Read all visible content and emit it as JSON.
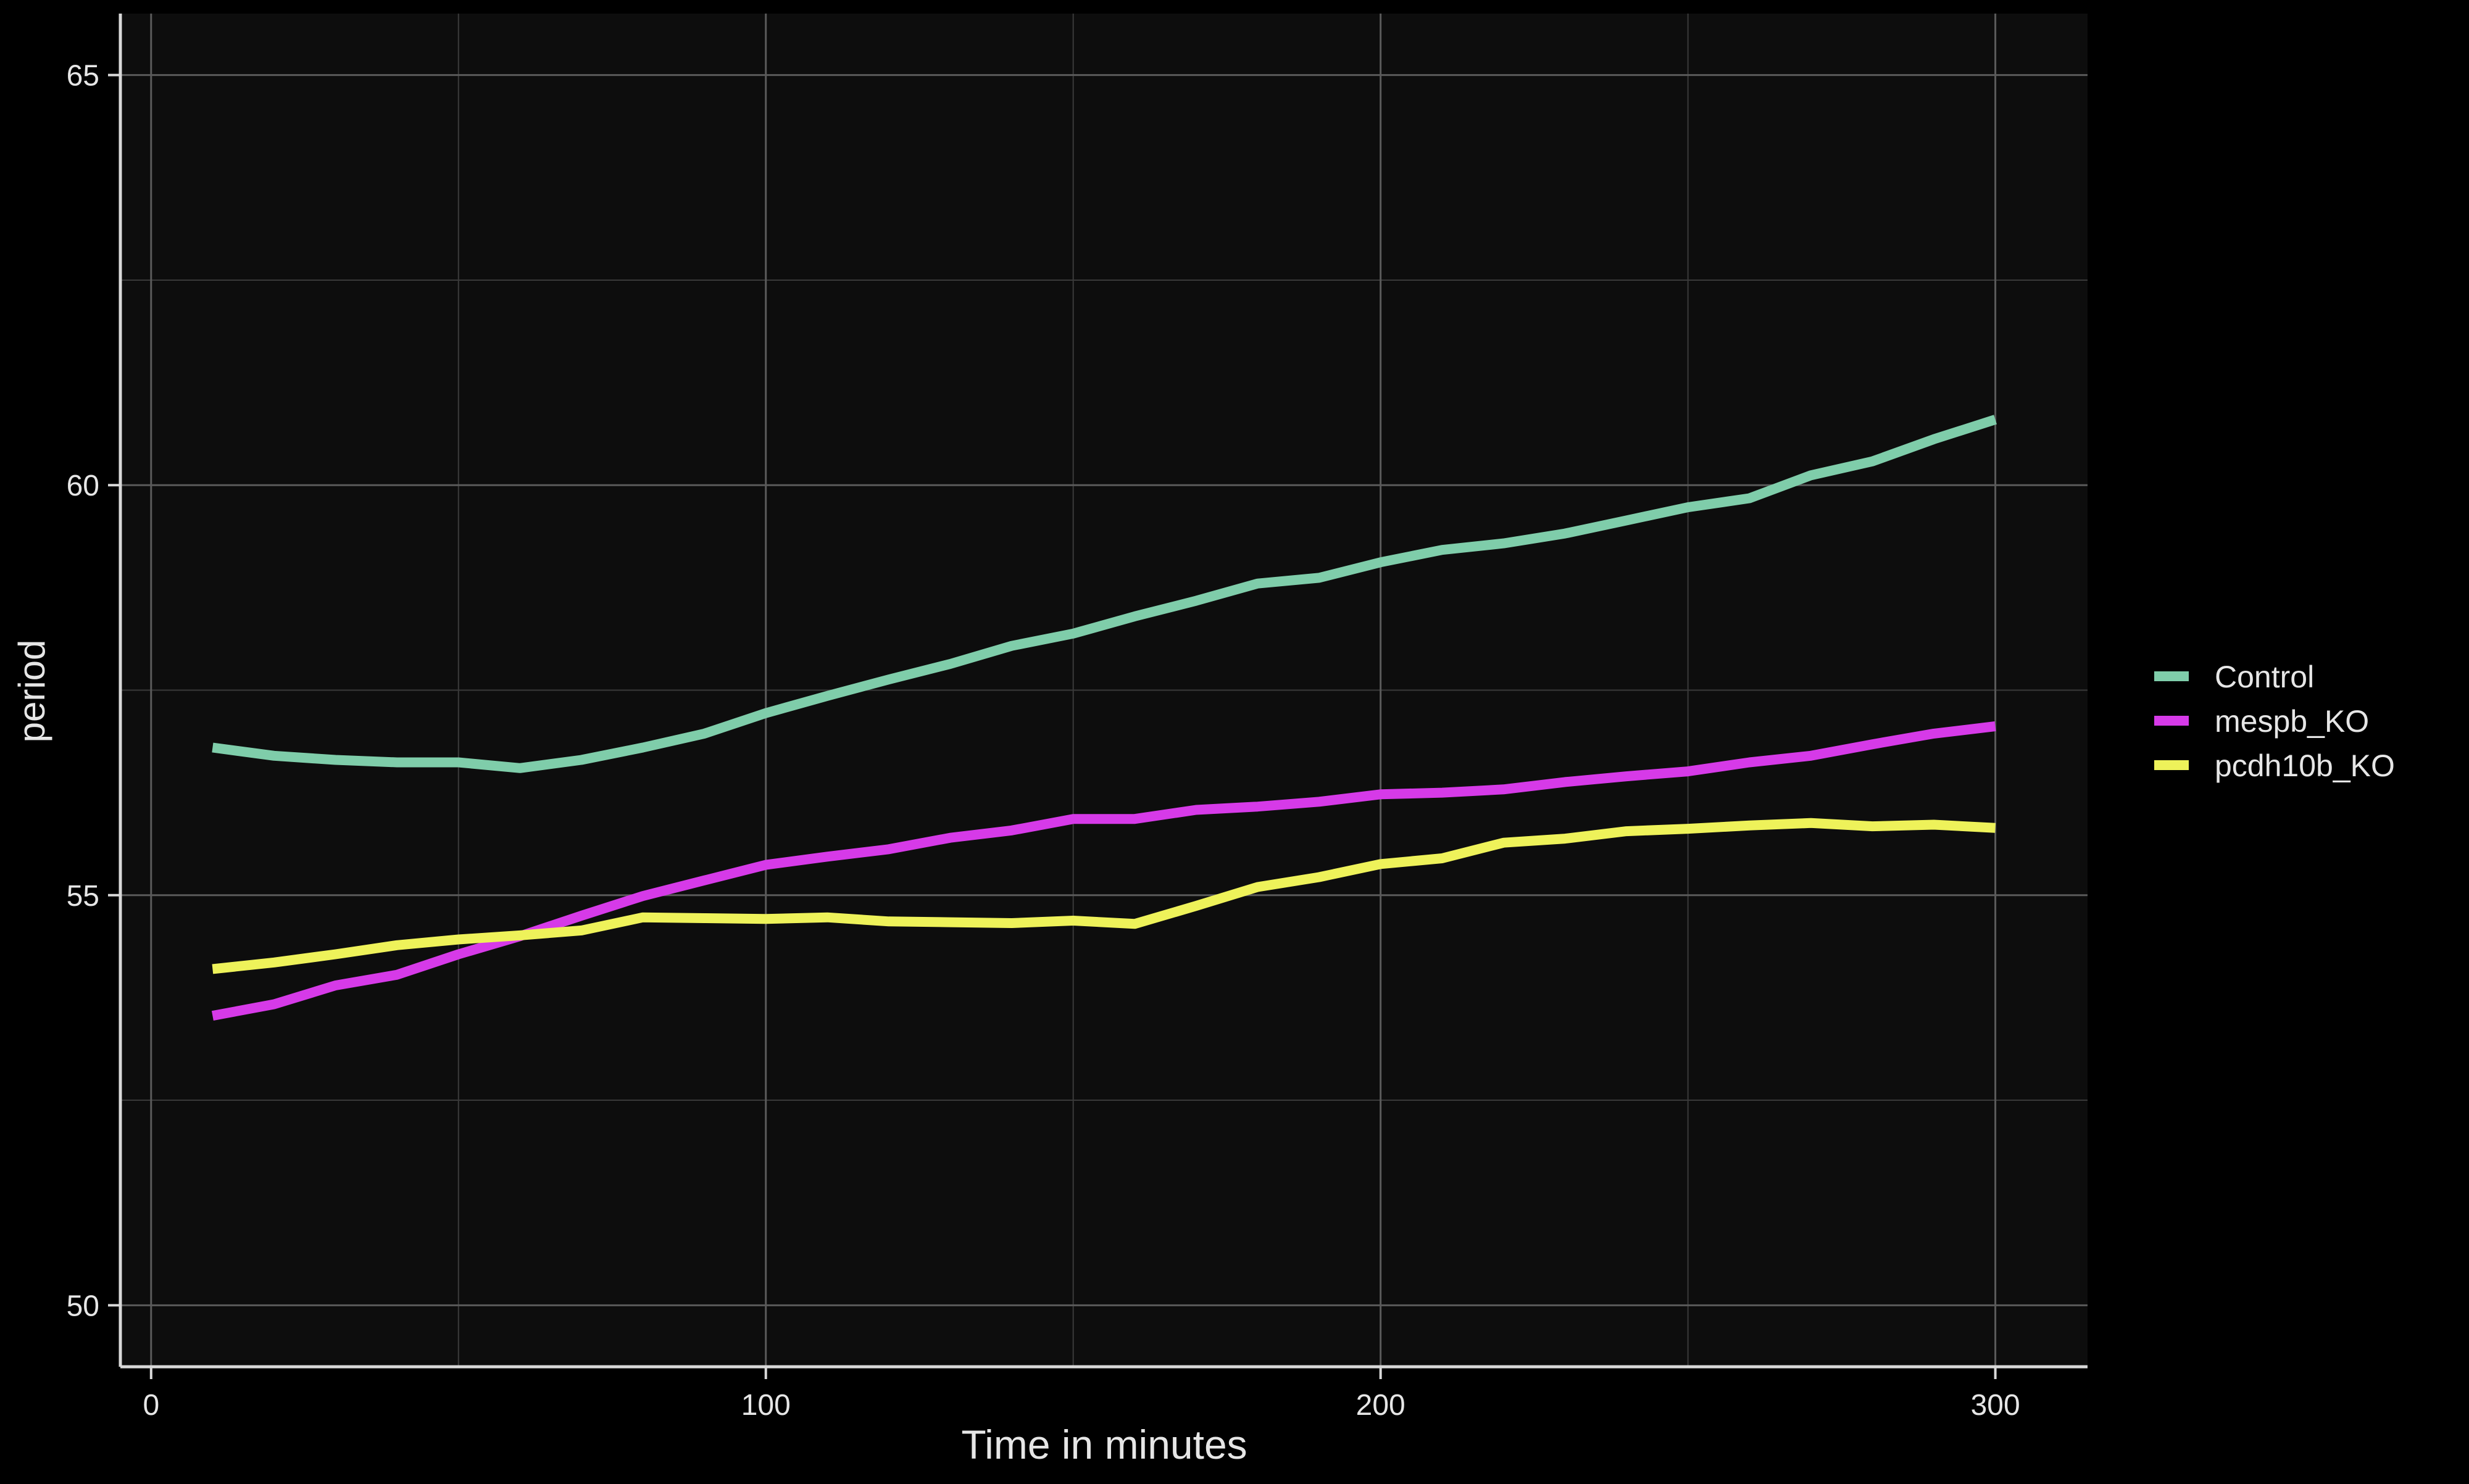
{
  "chart_data": {
    "type": "line",
    "title": "",
    "xlabel": "Time in minutes",
    "ylabel": "period",
    "xlim": [
      -5,
      315
    ],
    "ylim": [
      49.25,
      65.75
    ],
    "xticks": [
      0,
      100,
      200,
      300
    ],
    "yticks": [
      50,
      55,
      60,
      65
    ],
    "x_minor_gridlines": [
      50,
      150,
      250
    ],
    "y_minor_gridlines": [
      52.5,
      57.5,
      62.5
    ],
    "grid": true,
    "legend_position": "right",
    "colors": {
      "page_background": "#000000",
      "panel_background": "#0d0d0d",
      "major_grid": "#5a5a5a",
      "minor_grid": "#3a3a3a",
      "axis_line": "#d9d9d9",
      "text": "#e6e6e6"
    },
    "x": [
      10,
      20,
      30,
      40,
      50,
      60,
      70,
      80,
      90,
      100,
      110,
      120,
      130,
      140,
      150,
      160,
      170,
      180,
      190,
      200,
      210,
      220,
      230,
      240,
      250,
      260,
      270,
      280,
      290,
      300
    ],
    "series": [
      {
        "name": "Control",
        "color": "#7fcdaa",
        "values": [
          56.8,
          56.7,
          56.65,
          56.62,
          56.62,
          56.55,
          56.65,
          56.8,
          56.97,
          57.22,
          57.43,
          57.63,
          57.82,
          58.04,
          58.19,
          58.4,
          58.59,
          58.8,
          58.87,
          59.06,
          59.21,
          59.29,
          59.41,
          59.57,
          59.73,
          59.84,
          60.12,
          60.29,
          60.56,
          60.8
        ]
      },
      {
        "name": "mespb_KO",
        "color": "#d63ae8",
        "values": [
          53.53,
          53.67,
          53.9,
          54.03,
          54.28,
          54.5,
          54.75,
          54.99,
          55.18,
          55.37,
          55.47,
          55.56,
          55.7,
          55.79,
          55.93,
          55.93,
          56.04,
          56.08,
          56.14,
          56.23,
          56.25,
          56.29,
          56.38,
          56.45,
          56.51,
          56.62,
          56.7,
          56.84,
          56.97,
          57.06
        ]
      },
      {
        "name": "pcdh10b_KO",
        "color": "#eef25a",
        "values": [
          54.1,
          54.18,
          54.28,
          54.39,
          54.46,
          54.51,
          54.57,
          54.73,
          54.72,
          54.71,
          54.73,
          54.68,
          54.67,
          54.66,
          54.69,
          54.65,
          54.87,
          55.1,
          55.22,
          55.38,
          55.45,
          55.64,
          55.69,
          55.78,
          55.81,
          55.85,
          55.88,
          55.84,
          55.86,
          55.82
        ]
      }
    ]
  }
}
